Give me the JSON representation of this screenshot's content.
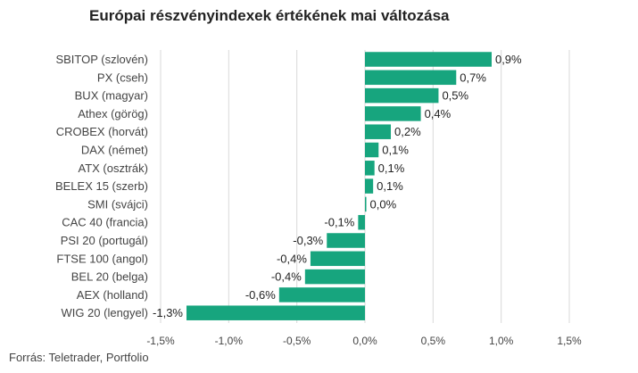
{
  "title": "Európai részvényindexek értékének mai változása",
  "source": "Forrás: Teletrader, Portfolio",
  "colors": {
    "bar": "#17a57e",
    "grid": "#d9d9d9",
    "text": "#444444"
  },
  "chart_data": {
    "type": "bar",
    "orientation": "horizontal",
    "categories": [
      "SBITOP (szlovén)",
      "PX (cseh)",
      "BUX (magyar)",
      "Athex (görög)",
      "CROBEX (horvát)",
      "DAX (német)",
      "ATX (osztrák)",
      "BELEX 15 (szerb)",
      "SMI (svájci)",
      "CAC 40 (francia)",
      "PSI 20 (portugál)",
      "FTSE 100 (angol)",
      "BEL 20 (belga)",
      "AEX (holland)",
      "WIG 20 (lengyel)"
    ],
    "values": [
      0.93,
      0.67,
      0.54,
      0.41,
      0.19,
      0.1,
      0.07,
      0.06,
      0.01,
      -0.05,
      -0.28,
      -0.4,
      -0.44,
      -0.63,
      -1.31
    ],
    "data_labels": [
      "0,9%",
      "0,7%",
      "0,5%",
      "0,4%",
      "0,2%",
      "0,1%",
      "0,1%",
      "0,1%",
      "0,0%",
      "-0,1%",
      "-0,3%",
      "-0,4%",
      "-0,4%",
      "-0,6%",
      "-1,3%"
    ],
    "xlim": [
      -1.5,
      1.5
    ],
    "xticks": [
      -1.5,
      -1.0,
      -0.5,
      0.0,
      0.5,
      1.0,
      1.5
    ],
    "xtick_labels": [
      "-1,5%",
      "-1,0%",
      "-0,5%",
      "0,0%",
      "0,5%",
      "1,0%",
      "1,5%"
    ],
    "grid": true,
    "legend": false
  }
}
